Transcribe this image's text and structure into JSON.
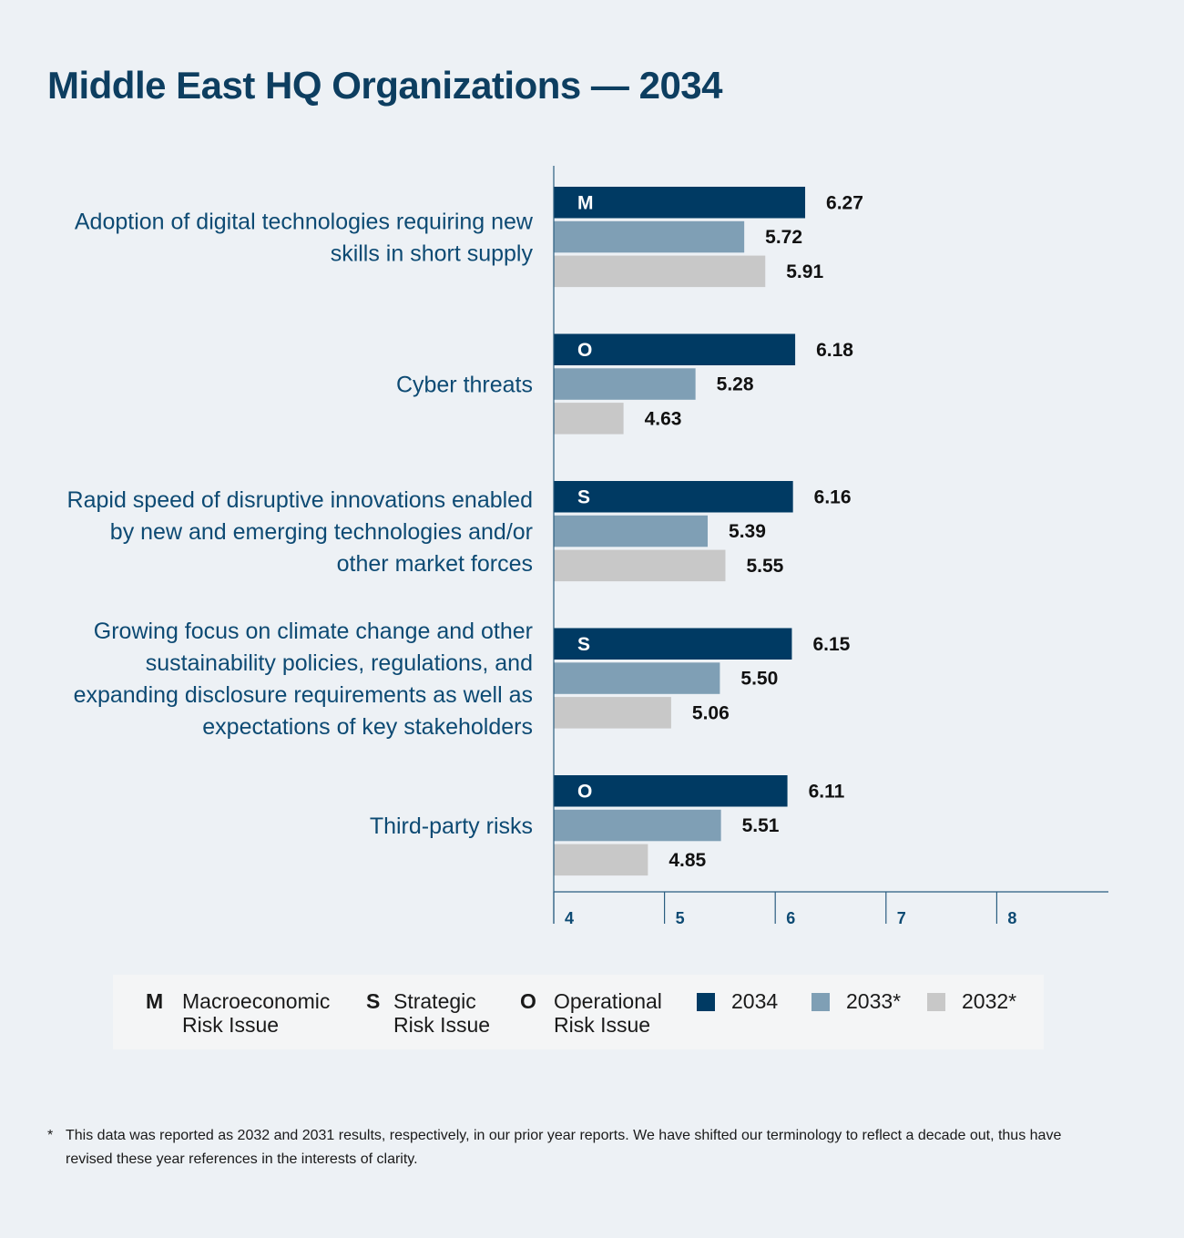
{
  "title": "Middle East HQ Organizations — 2034",
  "chart_data": {
    "type": "bar",
    "orientation": "horizontal",
    "categories": [
      {
        "lines": [
          "Adoption of digital technologies requiring new",
          "skills in short supply"
        ],
        "code": "M"
      },
      {
        "lines": [
          "Cyber threats"
        ],
        "code": "O"
      },
      {
        "lines": [
          "Rapid speed of disruptive innovations enabled",
          "by new and emerging technologies and/or",
          "other market forces"
        ],
        "code": "S"
      },
      {
        "lines": [
          "Growing focus on climate change and other",
          "sustainability policies, regulations, and",
          "expanding disclosure requirements as well as",
          "expectations of key stakeholders"
        ],
        "code": "S"
      },
      {
        "lines": [
          "Third-party risks"
        ],
        "code": "O"
      }
    ],
    "series": [
      {
        "name": "2034",
        "color": "#003a63",
        "values": [
          "6.27",
          "6.18",
          "6.16",
          "6.15",
          "6.11"
        ]
      },
      {
        "name": "2033*",
        "color": "#7f9fb5",
        "values": [
          "5.72",
          "5.28",
          "5.39",
          "5.50",
          "5.51"
        ]
      },
      {
        "name": "2032*",
        "color": "#c8c8c8",
        "values": [
          "5.91",
          "4.63",
          "5.55",
          "5.06",
          "4.85"
        ]
      }
    ],
    "xlim": [
      4,
      9
    ],
    "xticks": [
      "4",
      "5",
      "6",
      "7",
      "8"
    ],
    "grid": false
  },
  "legend": {
    "codes": [
      {
        "code": "M",
        "line1": "Macroeconomic",
        "line2": "Risk Issue"
      },
      {
        "code": "S",
        "line1": "Strategic",
        "line2": "Risk Issue"
      },
      {
        "code": "O",
        "line1": "Operational",
        "line2": "Risk Issue"
      }
    ],
    "years": [
      {
        "label": "2034",
        "color": "#003a63"
      },
      {
        "label": "2033*",
        "color": "#7f9fb5"
      },
      {
        "label": "2032*",
        "color": "#c8c8c8"
      }
    ]
  },
  "footnote": {
    "marker": "*",
    "text": "This data was reported as 2032 and 2031 results, respectively, in our prior year reports. We have shifted our terminology to reflect a decade out, thus have revised these year references in the interests of clarity."
  }
}
